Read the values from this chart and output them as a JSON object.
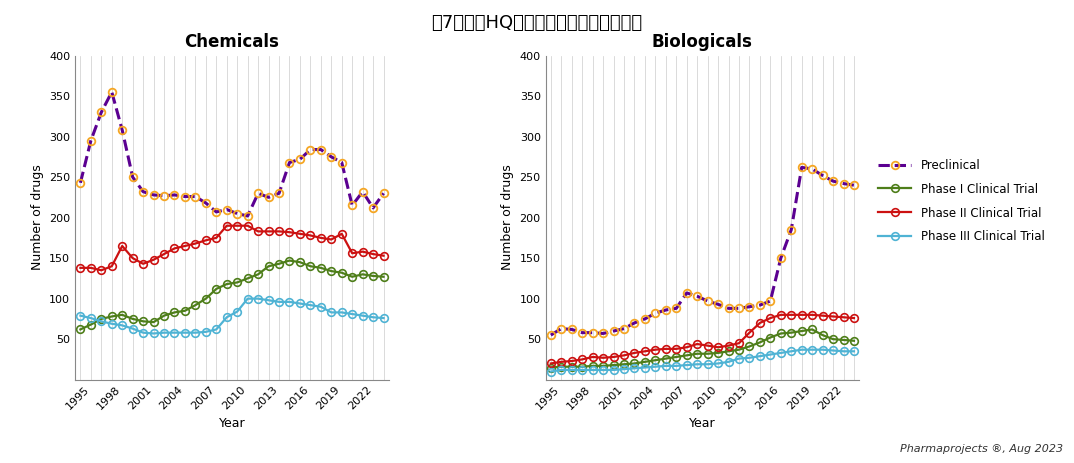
{
  "title": "図7　日本HQカンパニー研究開発品目数",
  "subtitle_left": "Chemicals",
  "subtitle_right": "Biologicals",
  "xlabel": "Year",
  "ylabel": "Number of drugs",
  "source_text": "Pharmaprojects ®, Aug 2023",
  "years": [
    1994,
    1995,
    1996,
    1997,
    1998,
    1999,
    2000,
    2001,
    2002,
    2003,
    2004,
    2005,
    2006,
    2007,
    2008,
    2009,
    2010,
    2011,
    2012,
    2013,
    2014,
    2015,
    2016,
    2017,
    2018,
    2019,
    2020,
    2021,
    2022,
    2023
  ],
  "chem_preclinical": [
    243,
    295,
    330,
    355,
    308,
    250,
    232,
    228,
    227,
    228,
    226,
    226,
    218,
    207,
    210,
    205,
    202,
    230,
    225,
    230,
    268,
    272,
    284,
    284,
    275,
    268,
    215,
    232,
    212,
    230
  ],
  "chem_phase1": [
    62,
    68,
    75,
    78,
    80,
    75,
    72,
    71,
    79,
    83,
    85,
    92,
    100,
    112,
    118,
    120,
    125,
    130,
    140,
    143,
    147,
    145,
    140,
    138,
    134,
    132,
    127,
    130,
    128,
    127
  ],
  "chem_phase2": [
    138,
    138,
    135,
    140,
    165,
    150,
    143,
    148,
    155,
    162,
    165,
    168,
    172,
    175,
    190,
    190,
    190,
    183,
    183,
    183,
    182,
    180,
    178,
    175,
    173,
    180,
    156,
    158,
    155,
    153
  ],
  "chem_phase3": [
    79,
    76,
    72,
    69,
    67,
    63,
    58,
    57,
    58,
    58,
    58,
    58,
    59,
    62,
    77,
    84,
    100,
    100,
    98,
    96,
    96,
    94,
    92,
    90,
    83,
    83,
    81,
    79,
    77,
    76
  ],
  "bio_preclinical": [
    55,
    63,
    62,
    58,
    58,
    57,
    60,
    63,
    70,
    75,
    82,
    86,
    88,
    107,
    103,
    97,
    93,
    88,
    88,
    90,
    92,
    97,
    150,
    185,
    262,
    260,
    252,
    245,
    242,
    240
  ],
  "bio_phase1": [
    15,
    16,
    16,
    16,
    17,
    17,
    18,
    19,
    20,
    22,
    24,
    26,
    28,
    30,
    32,
    32,
    33,
    35,
    37,
    41,
    46,
    52,
    57,
    58,
    60,
    62,
    55,
    50,
    49,
    48
  ],
  "bio_phase2": [
    20,
    22,
    23,
    25,
    28,
    27,
    28,
    30,
    33,
    35,
    37,
    38,
    38,
    40,
    44,
    42,
    40,
    42,
    45,
    58,
    70,
    76,
    80,
    80,
    80,
    80,
    79,
    78,
    77,
    76
  ],
  "bio_phase3": [
    10,
    12,
    12,
    12,
    12,
    12,
    12,
    13,
    14,
    15,
    16,
    17,
    17,
    18,
    19,
    19,
    20,
    22,
    26,
    27,
    29,
    31,
    33,
    35,
    37,
    37,
    37,
    36,
    35,
    35
  ],
  "color_preclinical": "#5b0091",
  "color_marker_preclinical": "#f5a623",
  "color_phase1": "#4e7e1a",
  "color_phase2": "#cc1111",
  "color_phase3": "#4fb3d4",
  "ylim": [
    0,
    400
  ],
  "yticks": [
    0,
    50,
    100,
    150,
    200,
    250,
    300,
    350,
    400
  ],
  "xtick_years": [
    1995,
    1998,
    2001,
    2004,
    2007,
    2010,
    2013,
    2016,
    2019,
    2022
  ],
  "legend_entries": [
    "Preclinical",
    "Phase I Clinical Trial",
    "Phase II Clinical Trial",
    "Phase III Clinical Trial"
  ],
  "background_color": "#ffffff",
  "linewidth": 1.6,
  "markersize": 5.5
}
